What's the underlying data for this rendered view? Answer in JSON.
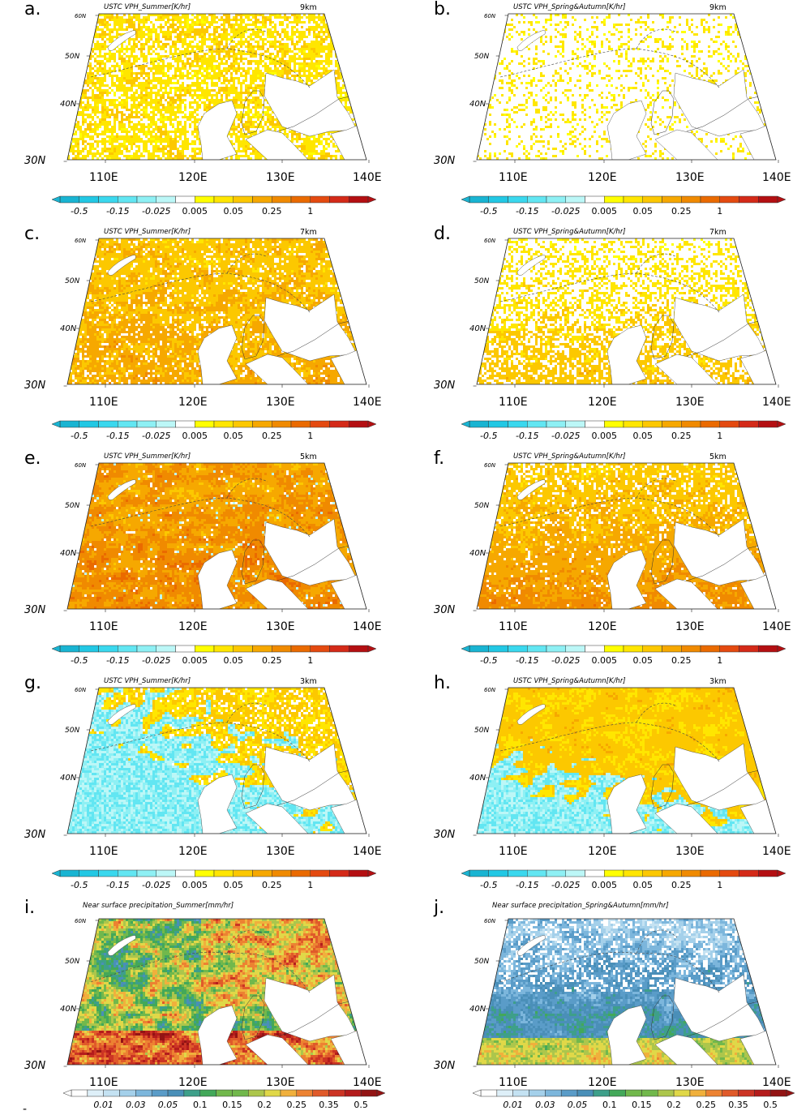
{
  "footer_mark": "-",
  "chart_data": [
    {
      "type": "heatmap",
      "panel": "a.",
      "title": "USTC VPH_Summer[K/hr]",
      "level": "9km",
      "variable": "VPH",
      "season": "Summer",
      "colorscale": "vph",
      "pattern": "vph9s",
      "lat_ticks": [
        "60N",
        "50N",
        "40N",
        "30N"
      ],
      "lon_ticks": [
        "110E",
        "120E",
        "130E",
        "140E"
      ],
      "lat_range": [
        30,
        60
      ],
      "lon_range": [
        105,
        140
      ],
      "colorbar_ticks": [
        "-0.5",
        "-0.15",
        "-0.025",
        "0.005",
        "0.05",
        "0.25",
        "1"
      ]
    },
    {
      "type": "heatmap",
      "panel": "b.",
      "title": "USTC VPH_Spring&Autumn[K/hr]",
      "level": "9km",
      "variable": "VPH",
      "season": "Spring&Autumn",
      "colorscale": "vph",
      "pattern": "vph9sa",
      "lat_ticks": [
        "60N",
        "50N",
        "40N",
        "30N"
      ],
      "lon_ticks": [
        "110E",
        "120E",
        "130E",
        "140E"
      ],
      "lat_range": [
        30,
        60
      ],
      "lon_range": [
        105,
        140
      ],
      "colorbar_ticks": [
        "-0.5",
        "-0.15",
        "-0.025",
        "0.005",
        "0.05",
        "0.25",
        "1"
      ]
    },
    {
      "type": "heatmap",
      "panel": "c.",
      "title": "USTC VPH_Summer[K/hr]",
      "level": "7km",
      "variable": "VPH",
      "season": "Summer",
      "colorscale": "vph",
      "pattern": "vph7s",
      "lat_ticks": [
        "60N",
        "50N",
        "40N",
        "30N"
      ],
      "lon_ticks": [
        "110E",
        "120E",
        "130E",
        "140E"
      ],
      "lat_range": [
        30,
        60
      ],
      "lon_range": [
        105,
        140
      ],
      "colorbar_ticks": [
        "-0.5",
        "-0.15",
        "-0.025",
        "0.005",
        "0.05",
        "0.25",
        "1"
      ]
    },
    {
      "type": "heatmap",
      "panel": "d.",
      "title": "USTC VPH_Spring&Autumn[K/hr]",
      "level": "7km",
      "variable": "VPH",
      "season": "Spring&Autumn",
      "colorscale": "vph",
      "pattern": "vph7sa",
      "lat_ticks": [
        "60N",
        "50N",
        "40N",
        "30N"
      ],
      "lon_ticks": [
        "110E",
        "120E",
        "130E",
        "140E"
      ],
      "lat_range": [
        30,
        60
      ],
      "lon_range": [
        105,
        140
      ],
      "colorbar_ticks": [
        "-0.5",
        "-0.15",
        "-0.025",
        "0.005",
        "0.05",
        "0.25",
        "1"
      ]
    },
    {
      "type": "heatmap",
      "panel": "e.",
      "title": "USTC VPH_Summer[K/hr]",
      "level": "5km",
      "variable": "VPH",
      "season": "Summer",
      "colorscale": "vph",
      "pattern": "vph5s",
      "lat_ticks": [
        "60N",
        "50N",
        "40N",
        "30N"
      ],
      "lon_ticks": [
        "110E",
        "120E",
        "130E",
        "140E"
      ],
      "lat_range": [
        30,
        60
      ],
      "lon_range": [
        105,
        140
      ],
      "colorbar_ticks": [
        "-0.5",
        "-0.15",
        "-0.025",
        "0.005",
        "0.05",
        "0.25",
        "1"
      ]
    },
    {
      "type": "heatmap",
      "panel": "f.",
      "title": "USTC VPH_Spring&Autumn[K/hr]",
      "level": "5km",
      "variable": "VPH",
      "season": "Spring&Autumn",
      "colorscale": "vph",
      "pattern": "vph5sa",
      "lat_ticks": [
        "60N",
        "50N",
        "40N",
        "30N"
      ],
      "lon_ticks": [
        "110E",
        "120E",
        "130E",
        "140E"
      ],
      "lat_range": [
        30,
        60
      ],
      "lon_range": [
        105,
        140
      ],
      "colorbar_ticks": [
        "-0.5",
        "-0.15",
        "-0.025",
        "0.005",
        "0.05",
        "0.25",
        "1"
      ]
    },
    {
      "type": "heatmap",
      "panel": "g.",
      "title": "USTC VPH_Summer[K/hr]",
      "level": "3km",
      "variable": "VPH",
      "season": "Summer",
      "colorscale": "vph",
      "pattern": "vph3s",
      "lat_ticks": [
        "60N",
        "50N",
        "40N",
        "30N"
      ],
      "lon_ticks": [
        "110E",
        "120E",
        "130E",
        "140E"
      ],
      "lat_range": [
        30,
        60
      ],
      "lon_range": [
        105,
        140
      ],
      "colorbar_ticks": [
        "-0.5",
        "-0.15",
        "-0.025",
        "0.005",
        "0.05",
        "0.25",
        "1"
      ]
    },
    {
      "type": "heatmap",
      "panel": "h.",
      "title": "USTC VPH_Spring&Autumn[K/hr]",
      "level": "3km",
      "variable": "VPH",
      "season": "Spring&Autumn",
      "colorscale": "vph",
      "pattern": "vph3sa",
      "lat_ticks": [
        "60N",
        "50N",
        "40N",
        "30N"
      ],
      "lon_ticks": [
        "110E",
        "120E",
        "130E",
        "140E"
      ],
      "lat_range": [
        30,
        60
      ],
      "lon_range": [
        105,
        140
      ],
      "colorbar_ticks": [
        "-0.5",
        "-0.15",
        "-0.025",
        "0.005",
        "0.05",
        "0.25",
        "1"
      ]
    },
    {
      "type": "heatmap",
      "panel": "i.",
      "title": "Near surface precipitation_Summer[mm/hr]",
      "level": "",
      "variable": "precipitation",
      "season": "Summer",
      "colorscale": "precip",
      "pattern": "prs",
      "lat_ticks": [
        "60N",
        "50N",
        "40N",
        "30N"
      ],
      "lon_ticks": [
        "110E",
        "120E",
        "130E",
        "140E"
      ],
      "lat_range": [
        30,
        60
      ],
      "lon_range": [
        105,
        140
      ],
      "colorbar_ticks": [
        "0.01",
        "0.03",
        "0.05",
        "0.1",
        "0.15",
        "0.2",
        "0.25",
        "0.35",
        "0.5"
      ]
    },
    {
      "type": "heatmap",
      "panel": "j.",
      "title": "Near surface precipitation_Spring&Autumn[mm/hr]",
      "level": "",
      "variable": "precipitation",
      "season": "Spring&Autumn",
      "colorscale": "precip",
      "pattern": "prsa",
      "lat_ticks": [
        "60N",
        "50N",
        "40N",
        "30N"
      ],
      "lon_ticks": [
        "110E",
        "120E",
        "130E",
        "140E"
      ],
      "lat_range": [
        30,
        60
      ],
      "lon_range": [
        105,
        140
      ],
      "colorbar_ticks": [
        "0.01",
        "0.03",
        "0.05",
        "0.1",
        "0.15",
        "0.2",
        "0.25",
        "0.35",
        "0.5"
      ]
    }
  ],
  "colorscales": {
    "vph": [
      "#19b4d2",
      "#22c8e4",
      "#3ad8ee",
      "#62e6f2",
      "#8ef0f4",
      "#bcf7f7",
      "#ffffff",
      "#ffff00",
      "#ffe600",
      "#fcc800",
      "#f6a800",
      "#f08a00",
      "#ea6a00",
      "#e44a10",
      "#d42a18",
      "#b40f12"
    ],
    "precip": [
      "#ffffff",
      "#deeff8",
      "#c4e2f2",
      "#a4d0ea",
      "#7cb6dc",
      "#5a9cc8",
      "#4a8fb8",
      "#3e9f8a",
      "#43a859",
      "#71b84c",
      "#acc64c",
      "#e0d848",
      "#f0b03c",
      "#ec8232",
      "#e05a2a",
      "#cc3424",
      "#b41c1c",
      "#931414"
    ]
  }
}
